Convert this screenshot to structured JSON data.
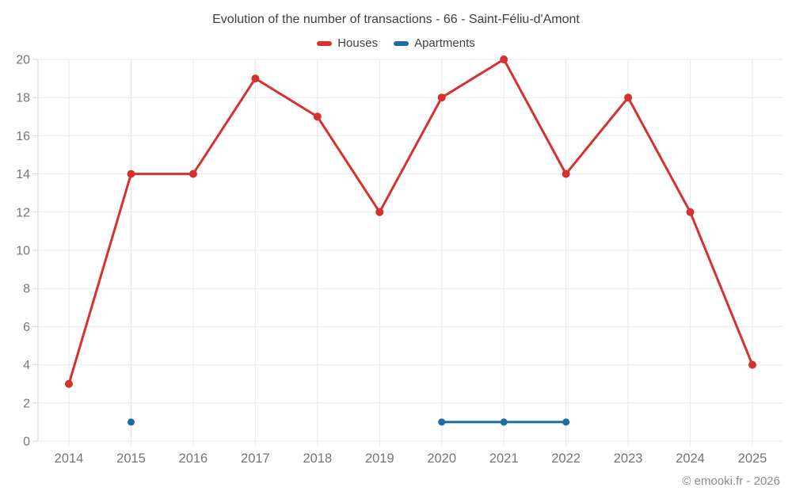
{
  "title": "Evolution of the number of transactions - 66 - Saint-Féliu-d'Amont",
  "footer": "© emooki.fr - 2026",
  "legend": [
    {
      "label": "Houses",
      "color": "#d7312e"
    },
    {
      "label": "Apartments",
      "color": "#1a6da6"
    }
  ],
  "chart_data": {
    "type": "line",
    "title": "Evolution of the number of transactions - 66 - Saint-Féliu-d'Amont",
    "x": [
      2014,
      2015,
      2016,
      2017,
      2018,
      2019,
      2020,
      2021,
      2022,
      2023,
      2024,
      2025
    ],
    "series": [
      {
        "name": "Houses",
        "color": "#d7312e",
        "marker_radius": 5,
        "values": [
          3,
          14,
          14,
          19,
          17,
          12,
          18,
          20,
          14,
          18,
          12,
          4
        ]
      },
      {
        "name": "Apartments",
        "color": "#1a6da6",
        "marker_radius": 4.5,
        "values": [
          null,
          1,
          null,
          null,
          null,
          null,
          1,
          1,
          1,
          null,
          null,
          null
        ]
      }
    ],
    "xlabel": "",
    "ylabel": "",
    "ylim": [
      0,
      20
    ],
    "yticks": [
      0,
      2,
      4,
      6,
      8,
      10,
      12,
      14,
      16,
      18,
      20
    ],
    "grid": true,
    "legend_position": "top",
    "colors": {
      "grid": "#e7e7e7",
      "axis": "#d6d6d6",
      "tick_labels": "#757575"
    }
  }
}
